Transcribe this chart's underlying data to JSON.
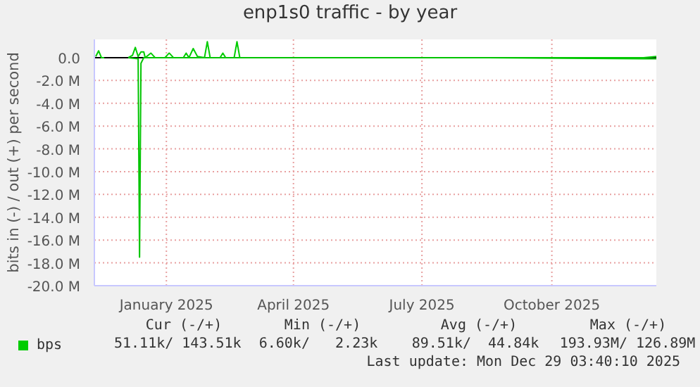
{
  "chart_data": {
    "type": "line",
    "title": "enp1s0 traffic - by year",
    "ylabel": "bits in (-) / out (+) per second",
    "xlim": [
      "2024-11-26",
      "2025-12-29"
    ],
    "xticks": [
      {
        "value": "2025-01-16",
        "label": "January 2025"
      },
      {
        "value": "2025-04-16",
        "label": "April 2025"
      },
      {
        "value": "2025-07-16",
        "label": "July 2025"
      },
      {
        "value": "2025-10-16",
        "label": "October 2025"
      }
    ],
    "ylim": [
      -20,
      1.6
    ],
    "yticks": [
      {
        "value": -20,
        "label": "-20.0 M"
      },
      {
        "value": -18,
        "label": "-18.0 M"
      },
      {
        "value": -16,
        "label": "-16.0 M"
      },
      {
        "value": -14,
        "label": "-14.0 M"
      },
      {
        "value": -12,
        "label": "-12.0 M"
      },
      {
        "value": -10,
        "label": "-10.0 M"
      },
      {
        "value": -8,
        "label": "-8.0 M"
      },
      {
        "value": -6,
        "label": "-6.0 M"
      },
      {
        "value": -4,
        "label": "-4.0 M"
      },
      {
        "value": -2,
        "label": "-2.0 M"
      },
      {
        "value": 0,
        "label": "0.0"
      }
    ],
    "grid": true,
    "legend": "bottom",
    "marker": "none",
    "line_style": "solid",
    "ref_lines": [
      {
        "axis": "y",
        "value": 0,
        "color": "#000000"
      }
    ],
    "series": [
      {
        "name": "bps",
        "color": "#00cc00",
        "x": [
          "2024-11-27",
          "2024-11-29",
          "2024-12-01",
          "2024-12-03",
          "2024-12-10",
          "2024-12-20",
          "2024-12-23",
          "2024-12-25",
          "2024-12-27",
          "2024-12-29",
          "2024-12-31",
          "2025-01-01",
          "2025-01-05",
          "2025-01-08",
          "2025-01-15",
          "2025-01-18",
          "2025-01-21",
          "2025-01-28",
          "2025-01-30",
          "2025-02-01",
          "2025-02-04",
          "2025-02-07",
          "2025-02-12",
          "2025-02-14",
          "2025-02-16",
          "2025-02-23",
          "2025-02-25",
          "2025-02-27",
          "2025-03-05",
          "2025-03-07",
          "2025-03-09",
          "2025-03-14",
          "2025-06-01",
          "2025-09-01",
          "2025-12-20",
          "2025-12-29"
        ],
        "values": [
          0.1,
          0.6,
          0,
          0,
          null,
          0,
          0.2,
          0.9,
          0.1,
          0.5,
          0.5,
          0,
          0.4,
          0,
          0,
          0.4,
          0,
          0,
          0.4,
          0,
          0.8,
          0.1,
          0,
          1.4,
          0,
          0,
          0.4,
          0,
          0,
          1.4,
          0,
          0,
          0,
          0,
          0,
          0.1
        ]
      },
      {
        "color": "#00c400",
        "x": [
          "2024-12-20",
          "2024-12-27",
          "2024-12-28",
          "2024-12-29",
          "2024-12-31",
          "2025-03-14",
          "2025-06-01",
          "2025-09-01",
          "2025-12-20",
          "2025-12-29"
        ],
        "values": [
          0,
          -0.1,
          -17.5,
          -0.5,
          0,
          0,
          0,
          0,
          -0.1,
          -0.1
        ]
      }
    ],
    "annotations": [
      "Cur (-/+)",
      "Min (-/+)",
      "Avg (-/+)",
      "Max (-/+)",
      "51.11k/ 143.51k",
      "6.60k/   2.23k",
      "89.51k/  44.84k",
      "193.93M/ 126.89M",
      "Last update: Mon Dec 29 03:40:10 2025"
    ]
  }
}
